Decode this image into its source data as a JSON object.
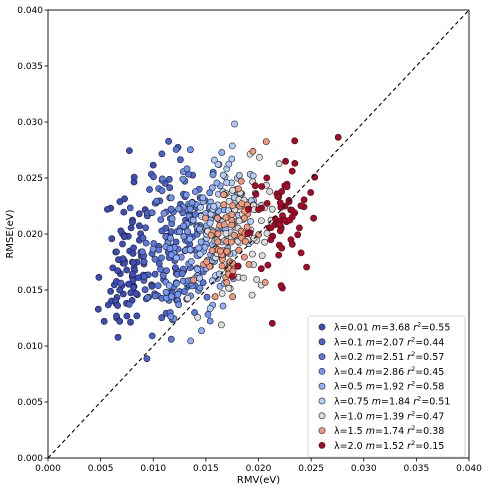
{
  "chart_data": {
    "type": "scatter",
    "title": "",
    "xlabel": "RMV(eV)",
    "ylabel": "RMSE(eV)",
    "xlim": [
      0,
      0.04
    ],
    "ylim": [
      0,
      0.04
    ],
    "xticks": [
      "0.000",
      "0.005",
      "0.010",
      "0.015",
      "0.020",
      "0.025",
      "0.030",
      "0.035",
      "0.040"
    ],
    "yticks": [
      "0.000",
      "0.005",
      "0.010",
      "0.015",
      "0.020",
      "0.025",
      "0.030",
      "0.035",
      "0.040"
    ],
    "grid": false,
    "legend_position": "lower-right",
    "diagonal_reference": "y = x (dashed black)",
    "series": [
      {
        "lambda": "0.01",
        "m": "3.68",
        "r2": "0.55",
        "color": "#3b4cc0",
        "x_center": 0.0075,
        "y_center": 0.0175,
        "x_spread": 0.0018,
        "y_spread": 0.006,
        "n": 85,
        "seed": 11
      },
      {
        "lambda": "0.1",
        "m": "2.07",
        "r2": "0.44",
        "color": "#4a63d3",
        "x_center": 0.011,
        "y_center": 0.019,
        "x_spread": 0.0025,
        "y_spread": 0.006,
        "n": 75,
        "seed": 23
      },
      {
        "lambda": "0.2",
        "m": "2.51",
        "r2": "0.57",
        "color": "#5a78e4",
        "x_center": 0.0125,
        "y_center": 0.019,
        "x_spread": 0.0025,
        "y_spread": 0.006,
        "n": 75,
        "seed": 37
      },
      {
        "lambda": "0.4",
        "m": "2.86",
        "r2": "0.45",
        "color": "#7396f5",
        "x_center": 0.0135,
        "y_center": 0.0195,
        "x_spread": 0.0025,
        "y_spread": 0.0055,
        "n": 70,
        "seed": 41
      },
      {
        "lambda": "0.5",
        "m": "1.92",
        "r2": "0.58",
        "color": "#8fb1fe",
        "x_center": 0.0155,
        "y_center": 0.0195,
        "x_spread": 0.0025,
        "y_spread": 0.0055,
        "n": 70,
        "seed": 53
      },
      {
        "lambda": "0.75",
        "m": "1.84",
        "r2": "0.51",
        "color": "#b2ccfb",
        "x_center": 0.017,
        "y_center": 0.021,
        "x_spread": 0.0025,
        "y_spread": 0.0055,
        "n": 65,
        "seed": 67
      },
      {
        "lambda": "1.0",
        "m": "1.39",
        "r2": "0.47",
        "color": "#dcdddd",
        "x_center": 0.0185,
        "y_center": 0.0205,
        "x_spread": 0.0028,
        "y_spread": 0.005,
        "n": 65,
        "seed": 79
      },
      {
        "lambda": "1.5",
        "m": "1.74",
        "r2": "0.38",
        "color": "#f4987a",
        "x_center": 0.0175,
        "y_center": 0.0195,
        "x_spread": 0.0022,
        "y_spread": 0.0045,
        "n": 65,
        "seed": 83
      },
      {
        "lambda": "2.0",
        "m": "1.52",
        "r2": "0.15",
        "color": "#b40426",
        "x_center": 0.0215,
        "y_center": 0.021,
        "x_spread": 0.0033,
        "y_spread": 0.005,
        "n": 70,
        "seed": 97
      }
    ]
  }
}
